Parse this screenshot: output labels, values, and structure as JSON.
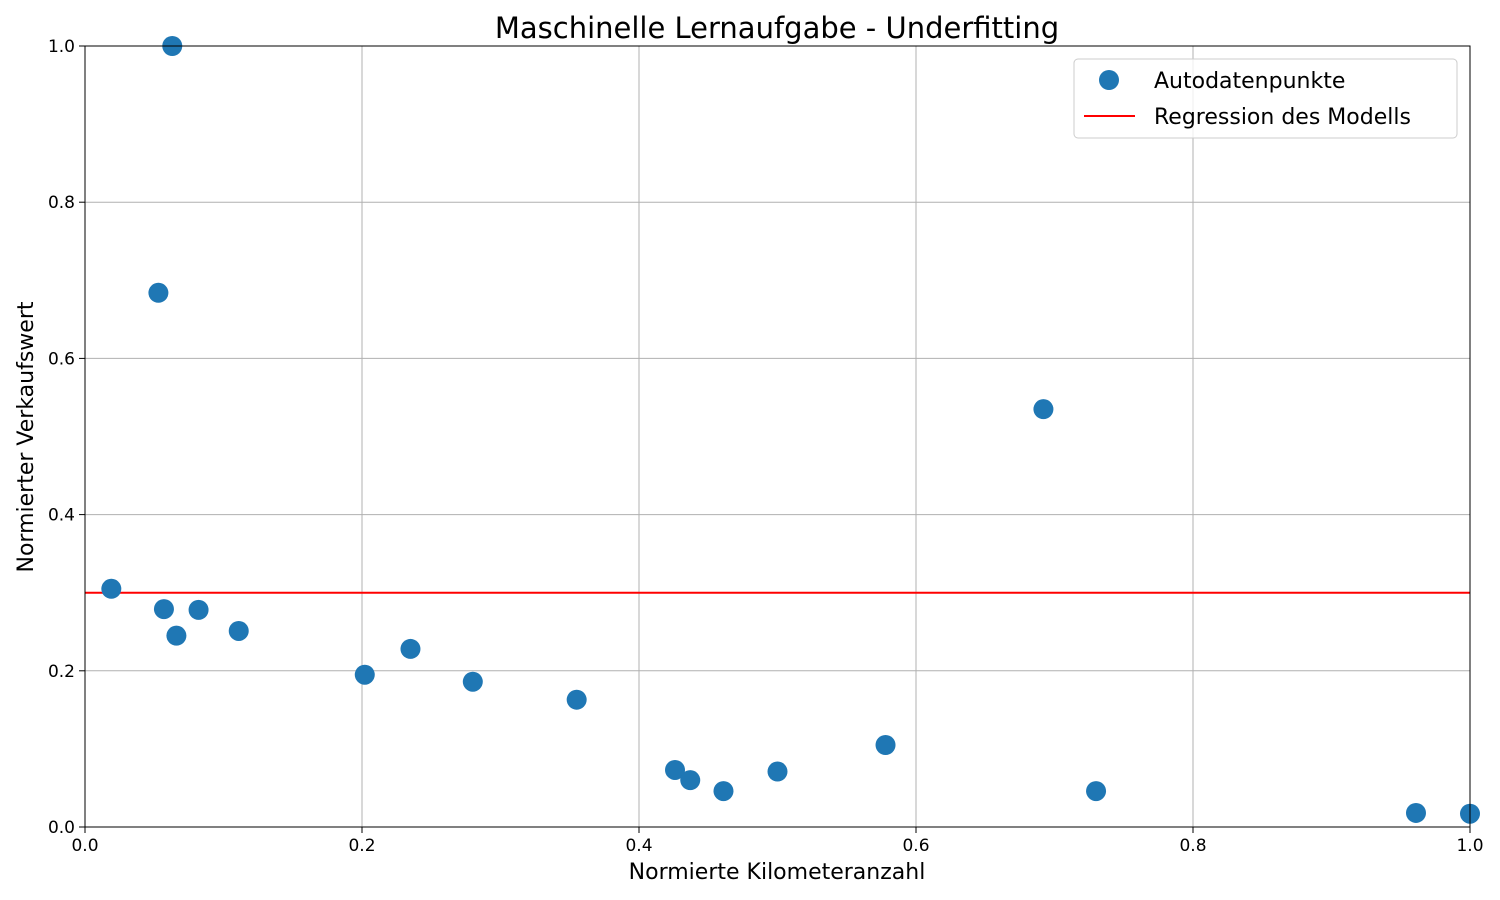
{
  "colors": {
    "points": "#1f77b4",
    "regression": "#ff0000",
    "grid": "#b0b0b0",
    "axes": "#000000"
  },
  "chart_data": {
    "type": "scatter",
    "title": "Maschinelle Lernaufgabe - Underfitting",
    "xlabel": "Normierte Kilometeranzahl",
    "ylabel": "Normierter Verkaufswert",
    "xlim": [
      0,
      1
    ],
    "ylim": [
      0,
      1
    ],
    "grid": true,
    "legend_position": "top-right",
    "x_ticks": [
      "0.0",
      "0.2",
      "0.4",
      "0.6",
      "0.8",
      "1.0"
    ],
    "y_ticks": [
      "0.0",
      "0.2",
      "0.4",
      "0.6",
      "0.8",
      "1.0"
    ],
    "series": [
      {
        "name": "Autodatenpunkte",
        "kind": "scatter",
        "x": [
          0.019,
          0.053,
          0.057,
          0.063,
          0.066,
          0.082,
          0.111,
          0.202,
          0.235,
          0.28,
          0.355,
          0.426,
          0.437,
          0.461,
          0.5,
          0.578,
          0.692,
          0.73,
          0.961,
          1.0
        ],
        "y": [
          0.305,
          0.684,
          0.279,
          1.0,
          0.245,
          0.278,
          0.251,
          0.195,
          0.228,
          0.186,
          0.163,
          0.073,
          0.06,
          0.046,
          0.071,
          0.105,
          0.535,
          0.046,
          0.018,
          0.017
        ]
      },
      {
        "name": "Regression des Modells",
        "kind": "line",
        "x": [
          0,
          1
        ],
        "y": [
          0.3,
          0.3
        ]
      }
    ]
  }
}
